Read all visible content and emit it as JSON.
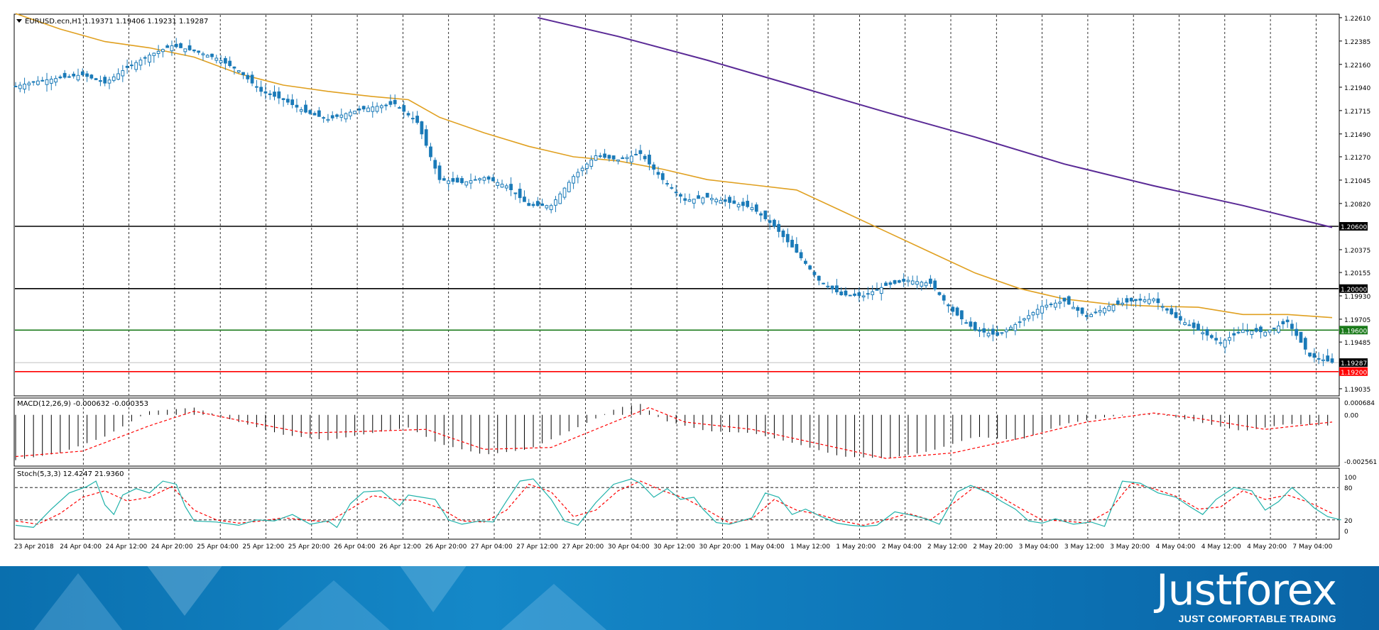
{
  "chart_data": [
    {
      "type": "candlestick",
      "title": "EURUSD.ecn,H1  1.19371 1.19406 1.19231 1.19287",
      "y_ticks": [
        "1.22610",
        "1.22385",
        "1.22160",
        "1.21940",
        "1.21715",
        "1.21490",
        "1.21270",
        "1.21045",
        "1.20820",
        "1.20375",
        "1.20155",
        "1.19930",
        "1.19705",
        "1.19485",
        "1.19035"
      ],
      "ylim": [
        1.1898,
        1.2263
      ],
      "x_labels": [
        "23 Apr 2018",
        "24 Apr 04:00",
        "24 Apr 12:00",
        "24 Apr 20:00",
        "25 Apr 04:00",
        "25 Apr 12:00",
        "25 Apr 20:00",
        "26 Apr 04:00",
        "26 Apr 12:00",
        "26 Apr 20:00",
        "27 Apr 04:00",
        "27 Apr 12:00",
        "27 Apr 20:00",
        "30 Apr 04:00",
        "30 Apr 12:00",
        "30 Apr 20:00",
        "1 May 04:00",
        "1 May 12:00",
        "1 May 20:00",
        "2 May 04:00",
        "2 May 12:00",
        "2 May 20:00",
        "3 May 04:00",
        "3 May 12:00",
        "3 May 20:00",
        "4 May 04:00",
        "4 May 12:00",
        "4 May 20:00",
        "7 May 04:00"
      ],
      "close_path": [
        [
          0,
          1.2195
        ],
        [
          5,
          1.22
        ],
        [
          10,
          1.2203
        ],
        [
          15,
          1.2206
        ],
        [
          20,
          1.2198
        ],
        [
          25,
          1.2213
        ],
        [
          30,
          1.2225
        ],
        [
          35,
          1.2234
        ],
        [
          40,
          1.2229
        ],
        [
          45,
          1.2222
        ],
        [
          50,
          1.221
        ],
        [
          55,
          1.219
        ],
        [
          60,
          1.2182
        ],
        [
          65,
          1.217
        ],
        [
          70,
          1.2163
        ],
        [
          75,
          1.217
        ],
        [
          80,
          1.2175
        ],
        [
          85,
          1.2178
        ],
        [
          90,
          1.216
        ],
        [
          95,
          1.2105
        ],
        [
          100,
          1.2102
        ],
        [
          105,
          1.2107
        ],
        [
          110,
          1.2099
        ],
        [
          115,
          1.208
        ],
        [
          120,
          1.208
        ],
        [
          125,
          1.2108
        ],
        [
          130,
          1.2128
        ],
        [
          135,
          1.2124
        ],
        [
          140,
          1.213
        ],
        [
          145,
          1.2105
        ],
        [
          150,
          1.2085
        ],
        [
          155,
          1.2088
        ],
        [
          160,
          1.2083
        ],
        [
          165,
          1.2078
        ],
        [
          170,
          1.206
        ],
        [
          175,
          1.2035
        ],
        [
          180,
          1.2008
        ],
        [
          185,
          1.1994
        ],
        [
          190,
          1.1993
        ],
        [
          195,
          1.2003
        ],
        [
          200,
          1.2008
        ],
        [
          205,
          1.2005
        ],
        [
          210,
          1.1978
        ],
        [
          215,
          1.196
        ],
        [
          220,
          1.1955
        ],
        [
          225,
          1.1968
        ],
        [
          230,
          1.1983
        ],
        [
          235,
          1.1988
        ],
        [
          240,
          1.1973
        ],
        [
          245,
          1.1983
        ],
        [
          250,
          1.1988
        ],
        [
          255,
          1.199
        ],
        [
          260,
          1.1972
        ],
        [
          265,
          1.196
        ],
        [
          270,
          1.1948
        ],
        [
          275,
          1.196
        ],
        [
          280,
          1.1958
        ],
        [
          285,
          1.1968
        ],
        [
          290,
          1.1935
        ],
        [
          295,
          1.1929
        ]
      ],
      "ma_fast_path": [
        [
          0,
          1.2265
        ],
        [
          10,
          1.225
        ],
        [
          20,
          1.2238
        ],
        [
          30,
          1.2232
        ],
        [
          40,
          1.2223
        ],
        [
          50,
          1.2207
        ],
        [
          60,
          1.2196
        ],
        [
          70,
          1.219
        ],
        [
          80,
          1.2185
        ],
        [
          88,
          1.2182
        ],
        [
          95,
          1.2165
        ],
        [
          105,
          1.215
        ],
        [
          115,
          1.2137
        ],
        [
          125,
          1.2127
        ],
        [
          135,
          1.2123
        ],
        [
          145,
          1.2115
        ],
        [
          155,
          1.2105
        ],
        [
          165,
          1.21
        ],
        [
          175,
          1.2095
        ],
        [
          185,
          1.2075
        ],
        [
          195,
          1.2055
        ],
        [
          205,
          1.2035
        ],
        [
          215,
          1.2015
        ],
        [
          225,
          1.2
        ],
        [
          235,
          1.199
        ],
        [
          245,
          1.1985
        ],
        [
          255,
          1.1983
        ],
        [
          265,
          1.1982
        ],
        [
          275,
          1.1975
        ],
        [
          285,
          1.1975
        ],
        [
          295,
          1.1972
        ]
      ],
      "ma_slow_path": [
        [
          117,
          1.2261
        ],
        [
          135,
          1.2243
        ],
        [
          155,
          1.222
        ],
        [
          175,
          1.2195
        ],
        [
          195,
          1.217
        ],
        [
          215,
          1.2146
        ],
        [
          235,
          1.212
        ],
        [
          255,
          1.2099
        ],
        [
          275,
          1.208
        ],
        [
          295,
          1.2059
        ]
      ],
      "levels": [
        {
          "value": 1.206,
          "label": "1.20600",
          "color": "#000000"
        },
        {
          "value": 1.2,
          "label": "1.20000",
          "color": "#000000"
        },
        {
          "value": 1.196,
          "label": "1.19600",
          "color": "#1a7a1a"
        },
        {
          "value": 1.19287,
          "label": "1.19287",
          "color": "#000000"
        },
        {
          "value": 1.192,
          "label": "1.19200",
          "color": "#ff0000"
        }
      ]
    },
    {
      "type": "macd",
      "title": "MACD(12,26,9) -0.000632 -0.000353",
      "y_ticks": [
        "0.000684",
        "0.00",
        "-0.002561"
      ],
      "ylim": [
        -0.00275,
        0.00085
      ],
      "hist_path": [
        [
          0,
          -0.0025
        ],
        [
          10,
          -0.0021
        ],
        [
          20,
          -0.0012
        ],
        [
          30,
          0.0002
        ],
        [
          40,
          0.0004
        ],
        [
          50,
          -0.0004
        ],
        [
          60,
          -0.0011
        ],
        [
          70,
          -0.0014
        ],
        [
          80,
          -0.001
        ],
        [
          88,
          -0.0007
        ],
        [
          95,
          -0.0016
        ],
        [
          105,
          -0.0022
        ],
        [
          115,
          -0.0019
        ],
        [
          125,
          -0.0008
        ],
        [
          135,
          0.0004
        ],
        [
          140,
          0.0006
        ],
        [
          145,
          -0.0003
        ],
        [
          155,
          -0.0009
        ],
        [
          165,
          -0.001
        ],
        [
          175,
          -0.0016
        ],
        [
          185,
          -0.0023
        ],
        [
          195,
          -0.0024
        ],
        [
          205,
          -0.002
        ],
        [
          215,
          -0.0012
        ],
        [
          225,
          -0.0014
        ],
        [
          235,
          -0.0005
        ],
        [
          245,
          -0.0001
        ],
        [
          255,
          0.0001
        ],
        [
          265,
          -0.0004
        ],
        [
          275,
          -0.0009
        ],
        [
          285,
          -0.0005
        ],
        [
          295,
          -0.0006
        ]
      ],
      "signal_path": [
        [
          0,
          -0.0023
        ],
        [
          15,
          -0.002
        ],
        [
          30,
          -0.0006
        ],
        [
          40,
          0.0002
        ],
        [
          50,
          -0.0003
        ],
        [
          65,
          -0.001
        ],
        [
          80,
          -0.0009
        ],
        [
          92,
          -0.0008
        ],
        [
          105,
          -0.0019
        ],
        [
          120,
          -0.0018
        ],
        [
          135,
          -0.0003
        ],
        [
          142,
          0.0004
        ],
        [
          150,
          -0.0004
        ],
        [
          165,
          -0.0008
        ],
        [
          180,
          -0.0016
        ],
        [
          195,
          -0.0024
        ],
        [
          210,
          -0.0021
        ],
        [
          225,
          -0.0013
        ],
        [
          240,
          -0.0004
        ],
        [
          255,
          0.0001
        ],
        [
          265,
          -0.0002
        ],
        [
          280,
          -0.0008
        ],
        [
          295,
          -0.0004
        ]
      ]
    },
    {
      "type": "stochastic",
      "title": "Stoch(5,3,3) 12.4247 21.9360",
      "y_ticks": [
        "100",
        "80",
        "20",
        "0"
      ],
      "ylim": [
        0,
        100
      ],
      "k_path": [
        [
          0,
          10
        ],
        [
          4,
          6
        ],
        [
          8,
          40
        ],
        [
          12,
          70
        ],
        [
          16,
          82
        ],
        [
          18,
          92
        ],
        [
          20,
          48
        ],
        [
          22,
          30
        ],
        [
          24,
          66
        ],
        [
          27,
          78
        ],
        [
          30,
          70
        ],
        [
          33,
          92
        ],
        [
          36,
          86
        ],
        [
          38,
          45
        ],
        [
          40,
          18
        ],
        [
          45,
          16
        ],
        [
          50,
          10
        ],
        [
          54,
          20
        ],
        [
          58,
          18
        ],
        [
          62,
          30
        ],
        [
          66,
          12
        ],
        [
          70,
          18
        ],
        [
          72,
          6
        ],
        [
          75,
          50
        ],
        [
          78,
          72
        ],
        [
          82,
          74
        ],
        [
          84,
          60
        ],
        [
          86,
          46
        ],
        [
          88,
          66
        ],
        [
          91,
          62
        ],
        [
          94,
          58
        ],
        [
          97,
          20
        ],
        [
          100,
          12
        ],
        [
          104,
          18
        ],
        [
          107,
          16
        ],
        [
          110,
          55
        ],
        [
          113,
          92
        ],
        [
          116,
          96
        ],
        [
          120,
          58
        ],
        [
          123,
          18
        ],
        [
          126,
          10
        ],
        [
          130,
          52
        ],
        [
          134,
          86
        ],
        [
          138,
          96
        ],
        [
          140,
          88
        ],
        [
          143,
          62
        ],
        [
          146,
          78
        ],
        [
          149,
          58
        ],
        [
          152,
          62
        ],
        [
          154,
          40
        ],
        [
          157,
          15
        ],
        [
          160,
          12
        ],
        [
          165,
          24
        ],
        [
          168,
          70
        ],
        [
          171,
          62
        ],
        [
          174,
          30
        ],
        [
          177,
          40
        ],
        [
          180,
          28
        ],
        [
          184,
          14
        ],
        [
          187,
          10
        ],
        [
          190,
          8
        ],
        [
          193,
          10
        ],
        [
          197,
          35
        ],
        [
          200,
          30
        ],
        [
          204,
          22
        ],
        [
          207,
          12
        ],
        [
          211,
          72
        ],
        [
          214,
          84
        ],
        [
          218,
          70
        ],
        [
          221,
          54
        ],
        [
          224,
          40
        ],
        [
          227,
          18
        ],
        [
          230,
          14
        ],
        [
          233,
          22
        ],
        [
          237,
          12
        ],
        [
          241,
          16
        ],
        [
          244,
          8
        ],
        [
          248,
          92
        ],
        [
          252,
          88
        ],
        [
          256,
          70
        ],
        [
          260,
          62
        ],
        [
          263,
          45
        ],
        [
          266,
          30
        ],
        [
          269,
          58
        ],
        [
          273,
          80
        ],
        [
          277,
          74
        ],
        [
          280,
          38
        ],
        [
          283,
          54
        ],
        [
          286,
          80
        ],
        [
          289,
          58
        ],
        [
          291,
          42
        ],
        [
          294,
          26
        ],
        [
          297,
          20
        ]
      ],
      "d_path": [
        [
          0,
          18
        ],
        [
          5,
          12
        ],
        [
          10,
          32
        ],
        [
          15,
          62
        ],
        [
          20,
          74
        ],
        [
          25,
          55
        ],
        [
          30,
          62
        ],
        [
          35,
          82
        ],
        [
          40,
          38
        ],
        [
          45,
          20
        ],
        [
          50,
          14
        ],
        [
          55,
          18
        ],
        [
          60,
          24
        ],
        [
          65,
          20
        ],
        [
          70,
          16
        ],
        [
          75,
          40
        ],
        [
          80,
          65
        ],
        [
          85,
          58
        ],
        [
          90,
          56
        ],
        [
          95,
          42
        ],
        [
          100,
          18
        ],
        [
          105,
          16
        ],
        [
          110,
          38
        ],
        [
          115,
          86
        ],
        [
          120,
          72
        ],
        [
          125,
          26
        ],
        [
          130,
          38
        ],
        [
          135,
          74
        ],
        [
          140,
          92
        ],
        [
          145,
          74
        ],
        [
          150,
          60
        ],
        [
          155,
          38
        ],
        [
          160,
          14
        ],
        [
          165,
          22
        ],
        [
          170,
          58
        ],
        [
          175,
          38
        ],
        [
          180,
          30
        ],
        [
          185,
          18
        ],
        [
          190,
          10
        ],
        [
          195,
          20
        ],
        [
          200,
          32
        ],
        [
          205,
          20
        ],
        [
          210,
          50
        ],
        [
          215,
          82
        ],
        [
          220,
          66
        ],
        [
          225,
          42
        ],
        [
          230,
          20
        ],
        [
          235,
          18
        ],
        [
          240,
          14
        ],
        [
          245,
          36
        ],
        [
          250,
          88
        ],
        [
          255,
          78
        ],
        [
          260,
          64
        ],
        [
          265,
          40
        ],
        [
          270,
          44
        ],
        [
          275,
          74
        ],
        [
          280,
          58
        ],
        [
          285,
          66
        ],
        [
          290,
          52
        ],
        [
          295,
          32
        ]
      ]
    }
  ],
  "brand": {
    "logo_text": "Justforex",
    "tagline": "JUST COMFORTABLE TRADING",
    "banner_color": "#0d74b6"
  },
  "colors": {
    "bull_candle": "#ffffff",
    "bear_candle": "#1a7ab8",
    "ma_fast": "#e0a020",
    "ma_slow": "#5a2a96",
    "macd_hist": "#000000",
    "macd_signal": "#ff0000",
    "stoch_k": "#20b2aa",
    "stoch_d": "#ff0000"
  },
  "icons": {
    "title_marker": "triangle-down-icon"
  }
}
